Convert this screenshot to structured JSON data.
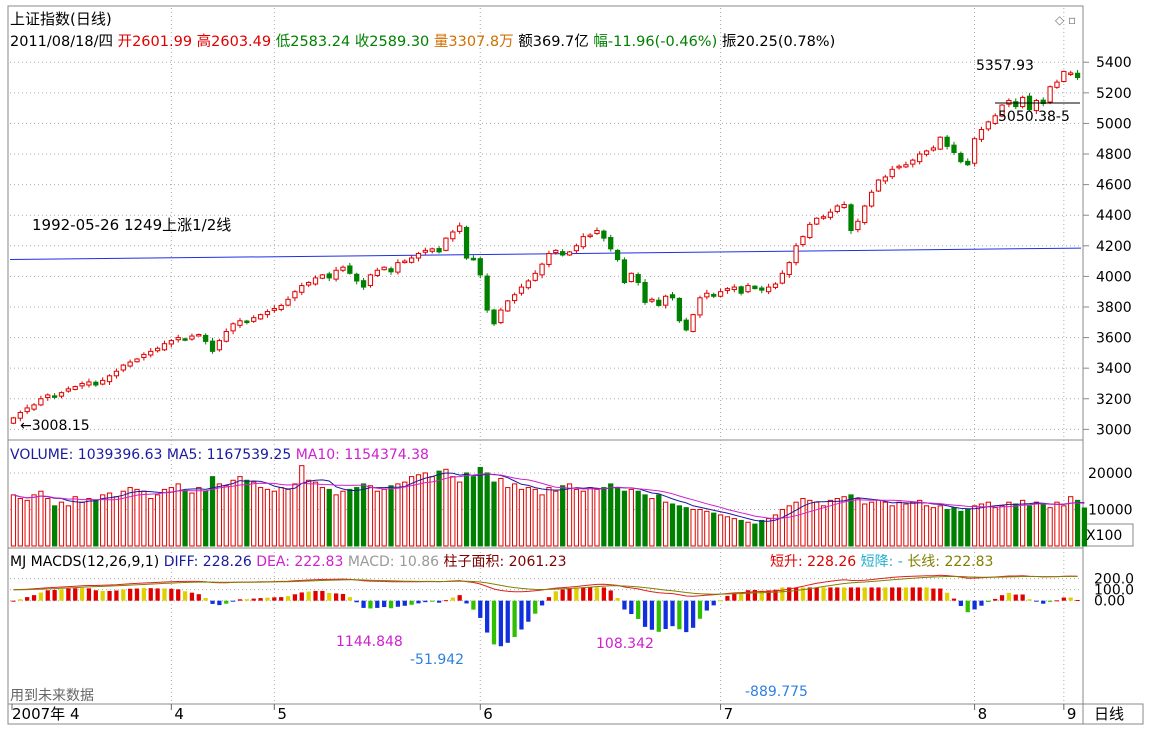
{
  "chart_data": [
    {
      "type": "candlestick",
      "title": "上证指数(日线)",
      "info": {
        "date": "2011/08/18/四",
        "open": "开2601.99",
        "high": "高2603.49",
        "low": "低2583.24",
        "close": "收2589.30",
        "volume": "量3307.8万",
        "amount": "额369.7亿",
        "change": "幅-11.96(-0.46%)",
        "amplitude": "振20.25(0.78%)"
      },
      "ylim": [
        2950,
        5480
      ],
      "yticks": [
        3000,
        3200,
        3400,
        3600,
        3800,
        4000,
        4200,
        4400,
        4600,
        4800,
        5000,
        5200,
        5400
      ],
      "annotations": {
        "max_label": "5357.93",
        "min_label": "3008.15",
        "level_label": "5050.38-5",
        "trend_label": "1992-05-26 1249上涨1/2线",
        "trend_start": 4110,
        "trend_end": 4185
      },
      "closes": [
        3075,
        3110,
        3140,
        3160,
        3200,
        3225,
        3215,
        3240,
        3265,
        3280,
        3300,
        3310,
        3290,
        3320,
        3350,
        3380,
        3420,
        3440,
        3460,
        3490,
        3510,
        3530,
        3560,
        3580,
        3600,
        3590,
        3610,
        3620,
        3575,
        3510,
        3580,
        3640,
        3690,
        3710,
        3700,
        3730,
        3750,
        3770,
        3790,
        3810,
        3850,
        3900,
        3940,
        3960,
        3990,
        4010,
        3990,
        4040,
        4060,
        4020,
        3970,
        3930,
        4010,
        4040,
        4060,
        4030,
        4090,
        4100,
        4120,
        4150,
        4170,
        4180,
        4160,
        4250,
        4290,
        4330,
        4120,
        4110,
        4010,
        3780,
        3690,
        3780,
        3840,
        3880,
        3930,
        3970,
        4020,
        4080,
        4150,
        4170,
        4140,
        4160,
        4200,
        4260,
        4270,
        4300,
        4250,
        4180,
        4110,
        3960,
        4020,
        3960,
        3830,
        3850,
        3810,
        3870,
        3860,
        3710,
        3650,
        3750,
        3860,
        3890,
        3870,
        3900,
        3920,
        3930,
        3890,
        3940,
        3920,
        3910,
        3930,
        3950,
        4020,
        4090,
        4200,
        4260,
        4340,
        4380,
        4390,
        4420,
        4460,
        4470,
        4300,
        4360,
        4460,
        4550,
        4630,
        4650,
        4700,
        4720,
        4730,
        4760,
        4800,
        4820,
        4840,
        4910,
        4850,
        4810,
        4750,
        4730,
        4900,
        4960,
        5010,
        5050,
        5120,
        5150,
        5110,
        5170,
        5090,
        5150,
        5130,
        5240,
        5270,
        5340,
        5330,
        5300
      ],
      "xtick_labels": [
        "2007年",
        "4",
        "5",
        "6",
        "7",
        "8",
        "9"
      ]
    },
    {
      "type": "bar",
      "title": "VOLUME",
      "legend": {
        "volume": "VOLUME: 1039396.63",
        "ma5": "MA5: 1167539.25",
        "ma10": "MA10: 1154374.38"
      },
      "ylim": [
        0,
        23000
      ],
      "yticks": [
        10000,
        20000
      ],
      "unit_label": "X100",
      "values": [
        14000,
        13000,
        12500,
        14000,
        15000,
        13000,
        11000,
        12000,
        11000,
        13500,
        12000,
        13000,
        12500,
        14000,
        14500,
        13500,
        15000,
        16000,
        15500,
        15000,
        13000,
        14000,
        15500,
        16000,
        17000,
        15000,
        14500,
        16000,
        15000,
        19000,
        17000,
        16500,
        18000,
        19000,
        18000,
        17500,
        16000,
        15500,
        15000,
        16000,
        15500,
        17000,
        22000,
        18000,
        17500,
        16000,
        15500,
        14000,
        15000,
        15500,
        16000,
        17000,
        16500,
        15000,
        15500,
        16500,
        17000,
        17500,
        19000,
        19500,
        20000,
        19000,
        20500,
        21000,
        19000,
        17500,
        20000,
        19000,
        21500,
        20000,
        17500,
        18500,
        16000,
        17000,
        15500,
        16000,
        15500,
        14000,
        16000,
        15000,
        16500,
        17000,
        15500,
        15000,
        16000,
        15500,
        16000,
        17000,
        16000,
        15000,
        15500,
        15000,
        14000,
        13000,
        14000,
        12000,
        11500,
        11000,
        10500,
        10000,
        10000,
        9500,
        9000,
        8500,
        8000,
        7500,
        7000,
        6500,
        6000,
        7000,
        7500,
        8500,
        10000,
        11000,
        12000,
        13000,
        12500,
        12000,
        11000,
        12500,
        13000,
        13500,
        14000,
        13000,
        11500,
        12000,
        12500,
        12000,
        11000,
        12000,
        11500,
        12000,
        12500,
        11000,
        10500,
        11000,
        10000,
        10500,
        9500,
        10000,
        11000,
        11500,
        12000,
        10500,
        11000,
        12000,
        11500,
        12500,
        11000,
        12000,
        11500,
        10500,
        12000,
        11000,
        13500,
        12500,
        10400
      ]
    },
    {
      "type": "line+bar",
      "title": "MJ MACDS(12,26,9,1)",
      "legend": {
        "name": "MJ  MACDS(12,26,9,1)",
        "diff": "DIFF: 228.26",
        "dea": "DEA: 222.83",
        "macd": "MACD: 10.86",
        "area": "柱子面积: 2061.23",
        "short_up": "短升: 228.26",
        "short_down": "短降: -",
        "long_line": "长线: 222.83"
      },
      "ylim": [
        -900,
        260
      ],
      "yticks": [
        "200.0",
        "100.0",
        "0.00"
      ],
      "ytick_values": [
        200,
        100,
        0
      ],
      "annotations": [
        "1144.848",
        "-51.942",
        "108.342",
        "-889.775"
      ],
      "note": "用到未来数据"
    }
  ],
  "period_label": "日线"
}
